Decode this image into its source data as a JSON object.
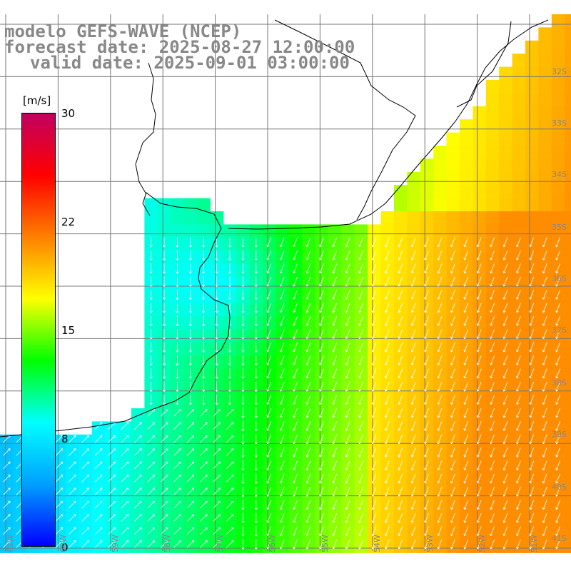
{
  "title": {
    "line1": "modelo GEFS-WAVE (NCEP)",
    "line2": "forecast date: 2025-08-27 12:00:00",
    "line3": "valid date: 2025-09-01 03:00:00"
  },
  "legend": {
    "unit": "[m/s]",
    "ticks": [
      "30",
      "22",
      "15",
      "8",
      "0"
    ],
    "tick_values": [
      30,
      22,
      15,
      8,
      0
    ],
    "range": [
      0,
      30
    ],
    "colors": [
      "#0000ff",
      "#00a0ff",
      "#00ffff",
      "#00ff00",
      "#ffff00",
      "#ff8000",
      "#ff0000",
      "#c00060"
    ]
  },
  "lat_labels": [
    "32S",
    "33S",
    "34S",
    "35S",
    "36S",
    "37S",
    "38S",
    "39S",
    "40S",
    "41S"
  ],
  "lon_labels": [
    "61W",
    "60W",
    "59W",
    "58W",
    "57W",
    "56W",
    "55W",
    "54W",
    "53W",
    "52W",
    "51W"
  ],
  "chart_data": {
    "type": "heatmap",
    "variable": "wind speed",
    "unit": "m/s",
    "lat_range": [
      -41.5,
      -31
    ],
    "lon_range": [
      -62,
      -51
    ],
    "color_range": [
      0,
      30
    ],
    "arrow_direction": "mostly from north-east toward south-west offshore; north-eastward near the southern coast"
  }
}
